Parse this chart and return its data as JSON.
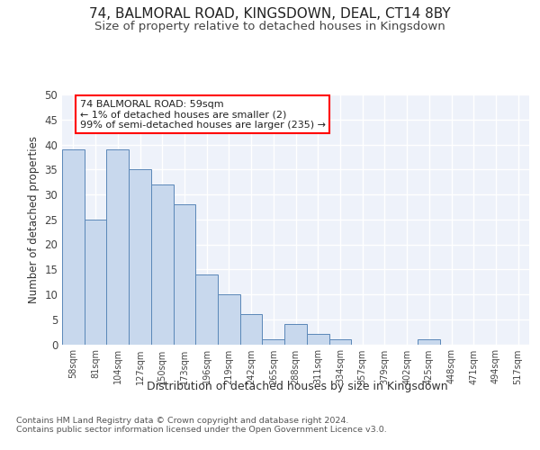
{
  "title1": "74, BALMORAL ROAD, KINGSDOWN, DEAL, CT14 8BY",
  "title2": "Size of property relative to detached houses in Kingsdown",
  "xlabel": "Distribution of detached houses by size in Kingsdown",
  "ylabel": "Number of detached properties",
  "bin_labels": [
    "58sqm",
    "81sqm",
    "104sqm",
    "127sqm",
    "150sqm",
    "173sqm",
    "196sqm",
    "219sqm",
    "242sqm",
    "265sqm",
    "288sqm",
    "311sqm",
    "334sqm",
    "357sqm",
    "379sqm",
    "402sqm",
    "425sqm",
    "448sqm",
    "471sqm",
    "494sqm",
    "517sqm"
  ],
  "values": [
    39,
    25,
    39,
    35,
    32,
    28,
    14,
    10,
    6,
    1,
    4,
    2,
    1,
    0,
    0,
    0,
    1,
    0,
    0,
    0,
    0
  ],
  "bar_color": "#c8d8ed",
  "bar_edge_color": "#5a87b8",
  "annotation_text": "74 BALMORAL ROAD: 59sqm\n← 1% of detached houses are smaller (2)\n99% of semi-detached houses are larger (235) →",
  "annotation_box_color": "white",
  "annotation_box_edge_color": "red",
  "ylim": [
    0,
    50
  ],
  "yticks": [
    0,
    5,
    10,
    15,
    20,
    25,
    30,
    35,
    40,
    45,
    50
  ],
  "footer_text": "Contains HM Land Registry data © Crown copyright and database right 2024.\nContains public sector information licensed under the Open Government Licence v3.0.",
  "bg_color": "#eef2fa",
  "grid_color": "#ffffff",
  "title1_fontsize": 11,
  "title2_fontsize": 9.5
}
